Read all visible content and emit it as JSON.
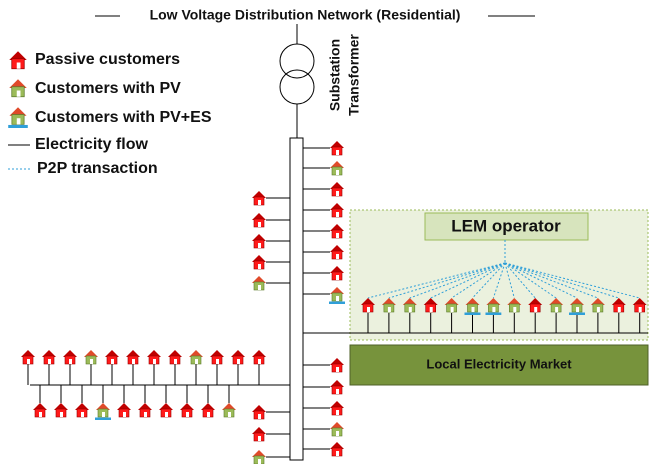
{
  "title": "Low Voltage Distribution Network (Residential)",
  "legend": [
    "Passive customers",
    "Customers with PV",
    "Customers with PV+ES",
    "Electricity flow",
    "P2P transaction"
  ],
  "transformer_label": [
    "Substation",
    "Transformer"
  ],
  "lem_operator": "LEM operator",
  "market": "Local Electricity Market"
}
